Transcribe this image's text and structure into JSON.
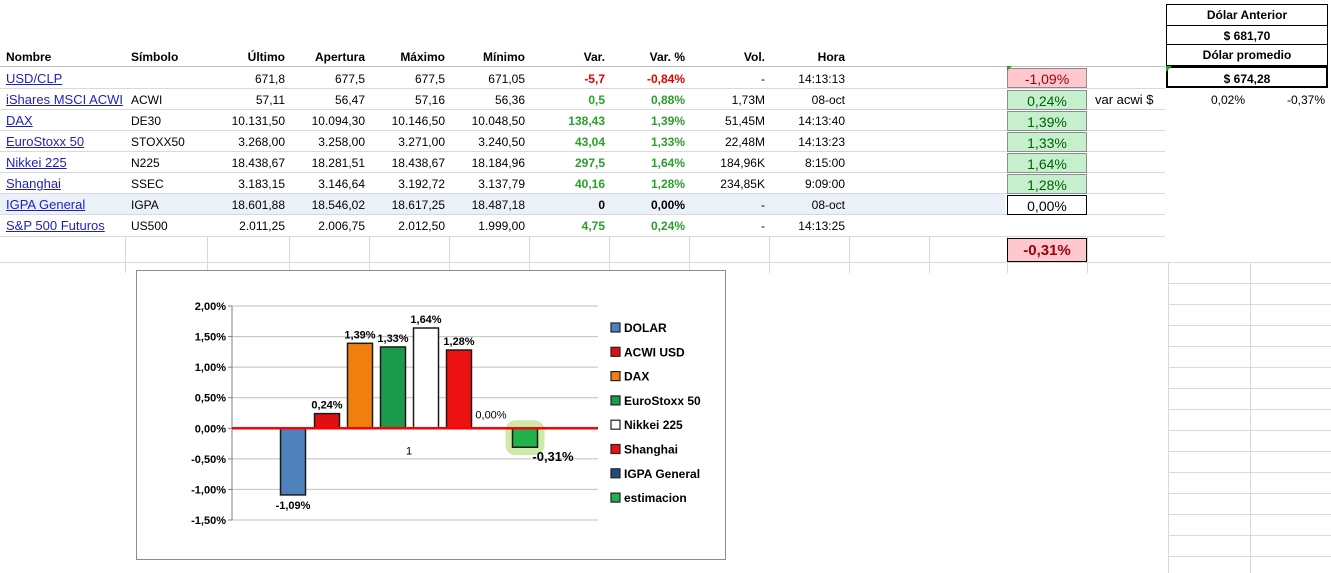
{
  "table": {
    "headers": [
      "Nombre",
      "Símbolo",
      "Último",
      "Apertura",
      "Máximo",
      "Mínimo",
      "Var.",
      "Var. %",
      "Vol.",
      "Hora"
    ],
    "rows": [
      {
        "name": "USD/CLP",
        "symbol": "",
        "last": "671,8",
        "open": "677,5",
        "high": "677,5",
        "low": "671,05",
        "var": "-5,7",
        "varpct": "-0,84%",
        "vol": "-",
        "time": "14:13:13",
        "sign": "neg"
      },
      {
        "name": "iShares MSCI ACWI",
        "symbol": "ACWI",
        "last": "57,11",
        "open": "56,47",
        "high": "57,16",
        "low": "56,36",
        "var": "0,5",
        "varpct": "0,88%",
        "vol": "1,73M",
        "time": "08-oct",
        "sign": "pos"
      },
      {
        "name": "DAX",
        "symbol": "DE30",
        "last": "10.131,50",
        "open": "10.094,30",
        "high": "10.146,50",
        "low": "10.048,50",
        "var": "138,43",
        "varpct": "1,39%",
        "vol": "51,45M",
        "time": "14:13:40",
        "sign": "pos"
      },
      {
        "name": "EuroStoxx 50",
        "symbol": "STOXX50",
        "last": "3.268,00",
        "open": "3.258,00",
        "high": "3.271,00",
        "low": "3.240,50",
        "var": "43,04",
        "varpct": "1,33%",
        "vol": "22,48M",
        "time": "14:13:23",
        "sign": "pos"
      },
      {
        "name": "Nikkei 225",
        "symbol": "N225",
        "last": "18.438,67",
        "open": "18.281,51",
        "high": "18.438,67",
        "low": "18.184,96",
        "var": "297,5",
        "varpct": "1,64%",
        "vol": "184,96K",
        "time": "8:15:00",
        "sign": "pos"
      },
      {
        "name": "Shanghai",
        "symbol": "SSEC",
        "last": "3.183,15",
        "open": "3.146,64",
        "high": "3.192,72",
        "low": "3.137,79",
        "var": "40,16",
        "varpct": "1,28%",
        "vol": "234,85K",
        "time": "9:09:00",
        "sign": "pos"
      },
      {
        "name": "IGPA General",
        "symbol": "IGPA",
        "last": "18.601,88",
        "open": "18.546,02",
        "high": "18.617,25",
        "low": "18.487,18",
        "var": "0",
        "varpct": "0,00%",
        "vol": "-",
        "time": "08-oct",
        "sign": "zero"
      },
      {
        "name": "S&P 500 Futuros",
        "symbol": "US500",
        "last": "2.011,25",
        "open": "2.006,75",
        "high": "2.012,50",
        "low": "1.999,00",
        "var": "4,75",
        "varpct": "0,24%",
        "vol": "-",
        "time": "14:13:25",
        "sign": "pos"
      }
    ]
  },
  "estimates": [
    {
      "value": "-1,09%",
      "style": "neg"
    },
    {
      "value": "0,24%",
      "style": "pos"
    },
    {
      "value": "1,39%",
      "style": "pos"
    },
    {
      "value": "1,33%",
      "style": "pos"
    },
    {
      "value": "1,64%",
      "style": "pos"
    },
    {
      "value": "1,28%",
      "style": "pos"
    },
    {
      "value": "0,00%",
      "style": "none"
    }
  ],
  "estimate_total": {
    "value": "-0,31%",
    "style": "neg"
  },
  "var_acwi": {
    "label": "var acwi $",
    "value1": "0,02%",
    "value2": "-0,37%"
  },
  "dolar": {
    "anterior_label": "Dólar Anterior",
    "anterior_value": "$ 681,70",
    "promedio_label": "Dólar promedio",
    "promedio_value": "$ 674,28"
  },
  "chart_data": {
    "type": "bar",
    "categories": [
      "1"
    ],
    "ylim": [
      -1.5,
      2.0
    ],
    "yticks": [
      -1.5,
      -1.0,
      -0.5,
      0.0,
      0.5,
      1.0,
      1.5,
      2.0
    ],
    "ytick_labels": [
      "-1,50%",
      "-1,00%",
      "-0,50%",
      "0,00%",
      "0,50%",
      "1,00%",
      "1,50%",
      "2,00%"
    ],
    "legend_position": "right",
    "series": [
      {
        "name": "DOLAR",
        "values": [
          -1.09
        ],
        "label": "-1,09%",
        "color": "#4f81bd"
      },
      {
        "name": "ACWI USD",
        "values": [
          0.24
        ],
        "label": "0,24%",
        "color": "#e01010"
      },
      {
        "name": "DAX",
        "values": [
          1.39
        ],
        "label": "1,39%",
        "color": "#f07f10"
      },
      {
        "name": "EuroStoxx 50",
        "values": [
          1.33
        ],
        "label": "1,33%",
        "color": "#1a9a4a"
      },
      {
        "name": "Nikkei 225",
        "values": [
          1.64
        ],
        "label": "1,64%",
        "color": "#ffffff"
      },
      {
        "name": "Shanghai",
        "values": [
          1.28
        ],
        "label": "1,28%",
        "color": "#ee1111"
      },
      {
        "name": "IGPA General",
        "values": [
          0.0
        ],
        "label": "0,00%",
        "color": "#1f4e79"
      },
      {
        "name": "estimacion",
        "values": [
          -0.31
        ],
        "label": "-0,31%",
        "color": "#22b24c"
      }
    ]
  }
}
